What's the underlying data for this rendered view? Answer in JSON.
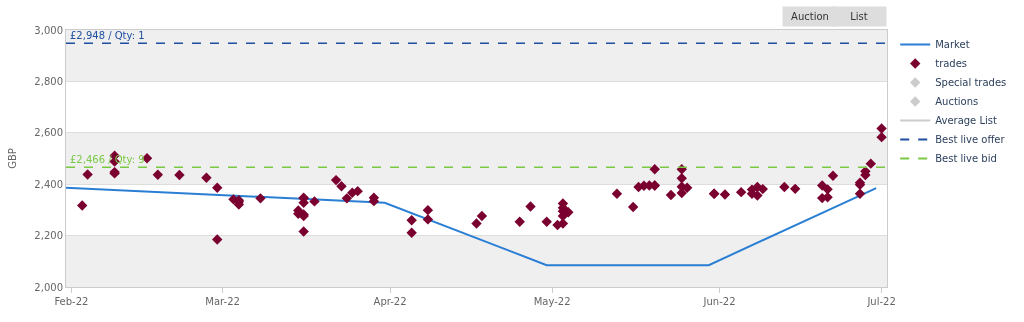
{
  "chart_data": {
    "type": "scatter",
    "ylabel": "GBP",
    "xlim": [
      "2022-01-31",
      "2022-07-02"
    ],
    "xticks": [
      {
        "value": "2022-02-01",
        "label": "Feb-22"
      },
      {
        "value": "2022-03-01",
        "label": "Mar-22"
      },
      {
        "value": "2022-04-01",
        "label": "Apr-22"
      },
      {
        "value": "2022-05-01",
        "label": "May-22"
      },
      {
        "value": "2022-06-01",
        "label": "Jun-22"
      },
      {
        "value": "2022-07-01",
        "label": "Jul-22"
      }
    ],
    "ylim": [
      2000,
      3000
    ],
    "yticks": [
      {
        "value": 2000,
        "label": "2,000"
      },
      {
        "value": 2200,
        "label": "2,200"
      },
      {
        "value": 2400,
        "label": "2,400"
      },
      {
        "value": 2600,
        "label": "2,600"
      },
      {
        "value": 2800,
        "label": "2,800"
      },
      {
        "value": 3000,
        "label": "3,000"
      }
    ],
    "grid": "y",
    "legend": "right",
    "series": [
      {
        "name": "Market",
        "type": "line",
        "color": "#2a7fd4",
        "marker": "none",
        "line_style": "solid",
        "x": [
          "2022-01-31",
          "2022-03-31",
          "2022-04-30",
          "2022-05-30",
          "2022-06-30"
        ],
        "values": [
          2386,
          2328,
          2085,
          2085,
          2385
        ]
      },
      {
        "name": "trades",
        "color": "#7a0030",
        "marker": "diamond",
        "x": [
          "2022-02-03",
          "2022-02-04",
          "2022-02-09",
          "2022-02-09",
          "2022-02-09",
          "2022-02-09",
          "2022-02-15",
          "2022-02-17",
          "2022-02-21",
          "2022-02-26",
          "2022-02-28",
          "2022-02-28",
          "2022-03-03",
          "2022-03-04",
          "2022-03-04",
          "2022-03-04",
          "2022-03-08",
          "2022-03-15",
          "2022-03-15",
          "2022-03-16",
          "2022-03-16",
          "2022-03-16",
          "2022-03-16",
          "2022-03-16",
          "2022-03-16",
          "2022-03-18",
          "2022-03-22",
          "2022-03-23",
          "2022-03-24",
          "2022-03-25",
          "2022-03-26",
          "2022-03-29",
          "2022-03-29",
          "2022-04-05",
          "2022-04-05",
          "2022-04-08",
          "2022-04-08",
          "2022-04-17",
          "2022-04-18",
          "2022-04-25",
          "2022-04-27",
          "2022-04-30",
          "2022-05-02",
          "2022-05-03",
          "2022-05-03",
          "2022-05-03",
          "2022-05-03",
          "2022-05-03",
          "2022-05-04",
          "2022-05-13",
          "2022-05-16",
          "2022-05-17",
          "2022-05-18",
          "2022-05-19",
          "2022-05-20",
          "2022-05-20",
          "2022-05-20",
          "2022-05-23",
          "2022-05-25",
          "2022-05-25",
          "2022-05-25",
          "2022-05-25",
          "2022-05-26",
          "2022-05-31",
          "2022-05-31",
          "2022-06-02",
          "2022-06-05",
          "2022-06-07",
          "2022-06-07",
          "2022-06-08",
          "2022-06-08",
          "2022-06-09",
          "2022-06-13",
          "2022-06-15",
          "2022-06-20",
          "2022-06-20",
          "2022-06-21",
          "2022-06-21",
          "2022-06-22",
          "2022-06-27",
          "2022-06-27",
          "2022-06-27",
          "2022-06-28",
          "2022-06-28",
          "2022-06-29",
          "2022-07-01",
          "2022-07-01"
        ],
        "values": [
          2317,
          2438,
          2442,
          2447,
          2488,
          2511,
          2501,
          2437,
          2436,
          2425,
          2386,
          2185,
          2341,
          2321,
          2332,
          2338,
          2345,
          2298,
          2285,
          2282,
          2276,
          2216,
          2347,
          2345,
          2328,
          2333,
          2416,
          2392,
          2345,
          2367,
          2373,
          2347,
          2334,
          2260,
          2211,
          2299,
          2263,
          2247,
          2276,
          2254,
          2313,
          2254,
          2241,
          2247,
          2276,
          2295,
          2308,
          2325,
          2291,
          2363,
          2311,
          2389,
          2394,
          2395,
          2395,
          2395,
          2458,
          2358,
          2366,
          2390,
          2423,
          2458,
          2386,
          2363,
          2363,
          2360,
          2369,
          2379,
          2363,
          2389,
          2356,
          2381,
          2389,
          2382,
          2395,
          2346,
          2349,
          2380,
          2433,
          2363,
          2398,
          2406,
          2436,
          2450,
          2480,
          2583,
          2617
        ]
      },
      {
        "name": "Special trades",
        "color": "#cccccc",
        "marker": "diamond"
      },
      {
        "name": "Auctions",
        "color": "#cccccc",
        "marker": "diamond"
      },
      {
        "name": "Average List",
        "type": "line",
        "color": "#cccccc",
        "marker": "none",
        "line_style": "solid"
      },
      {
        "name": "Best live offer",
        "type": "line",
        "color": "#1f4fa0",
        "marker": "none",
        "line_style": "dashed"
      },
      {
        "name": "Best live bid",
        "type": "line",
        "color": "#7ac943",
        "marker": "none",
        "line_style": "dashed"
      }
    ],
    "ref_lines": [
      {
        "axis": "y",
        "value": 2948,
        "label": "£2,948 / Qty: 1",
        "color": "#1f4fa0",
        "line_style": "dashed"
      },
      {
        "axis": "y",
        "value": 2466,
        "label": "£2,466 / Qty: 9",
        "color": "#7ac943",
        "line_style": "dashed"
      }
    ],
    "bands": [
      {
        "axis": "y",
        "from": 2000,
        "to": 2200,
        "color": "#efefef"
      },
      {
        "axis": "y",
        "from": 2400,
        "to": 2600,
        "color": "#efefef"
      },
      {
        "axis": "y",
        "from": 2800,
        "to": 3000,
        "color": "#efefef"
      }
    ],
    "annotations": [
      "Auction",
      "List"
    ]
  }
}
